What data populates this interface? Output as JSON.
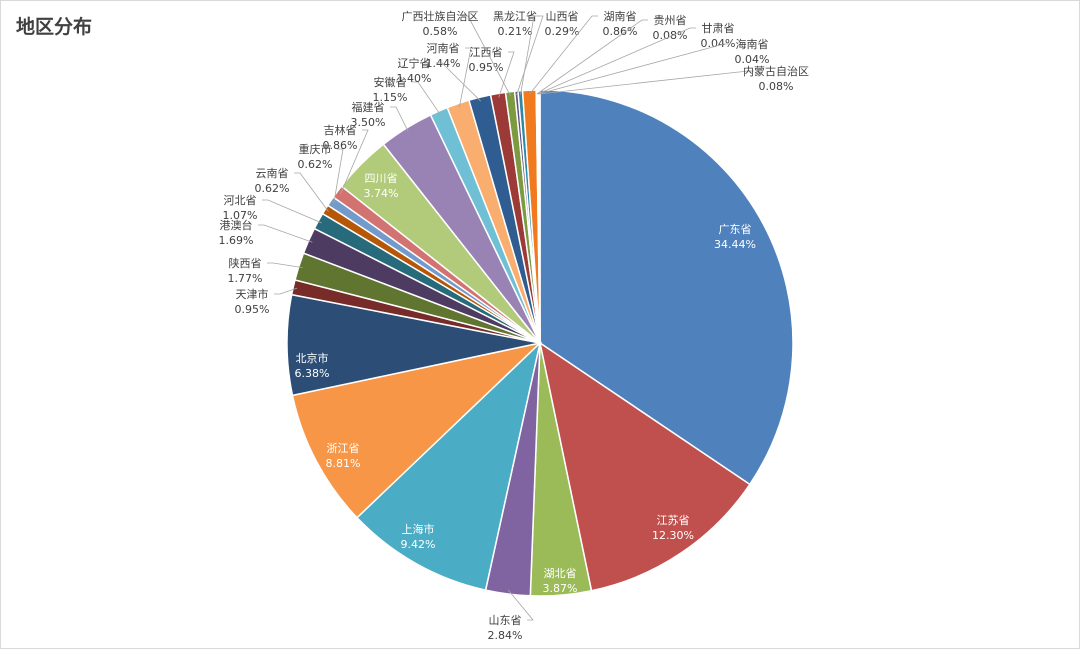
{
  "chart_data": {
    "type": "pie",
    "title": "地区分布",
    "start_angle_deg": 0,
    "direction": "clockwise",
    "slices": [
      {
        "label": "广东省",
        "value": 34.44,
        "display": "34.44%",
        "color": "#4f81bd"
      },
      {
        "label": "江苏省",
        "value": 12.3,
        "display": "12.30%",
        "color": "#c0504d"
      },
      {
        "label": "湖北省",
        "value": 3.87,
        "display": "3.87%",
        "color": "#9bbb59"
      },
      {
        "label": "山东省",
        "value": 2.84,
        "display": "2.84%",
        "color": "#8064a2"
      },
      {
        "label": "上海市",
        "value": 9.42,
        "display": "9.42%",
        "color": "#4bacc6"
      },
      {
        "label": "浙江省",
        "value": 8.81,
        "display": "8.81%",
        "color": "#f79646"
      },
      {
        "label": "北京市",
        "value": 6.38,
        "display": "6.38%",
        "color": "#2c4d75"
      },
      {
        "label": "天津市",
        "value": 0.95,
        "display": "0.95%",
        "color": "#772c2a"
      },
      {
        "label": "陕西省",
        "value": 1.77,
        "display": "1.77%",
        "color": "#5f7530"
      },
      {
        "label": "港澳台",
        "value": 1.69,
        "display": "1.69%",
        "color": "#4d3b62"
      },
      {
        "label": "河北省",
        "value": 1.07,
        "display": "1.07%",
        "color": "#276a7c"
      },
      {
        "label": "云南省",
        "value": 0.62,
        "display": "0.62%",
        "color": "#b65708"
      },
      {
        "label": "重庆市",
        "value": 0.62,
        "display": "0.62%",
        "color": "#729aca"
      },
      {
        "label": "吉林省",
        "value": 0.86,
        "display": "0.86%",
        "color": "#d37371"
      },
      {
        "label": "四川省",
        "value": 3.74,
        "display": "3.74%",
        "color": "#b1cb7b"
      },
      {
        "label": "福建省",
        "value": 3.5,
        "display": "3.50%",
        "color": "#9983b5"
      },
      {
        "label": "安徽省",
        "value": 1.15,
        "display": "1.15%",
        "color": "#6fc0d5"
      },
      {
        "label": "河南省",
        "value": 1.44,
        "display": "1.44%",
        "color": "#f9ad6e"
      },
      {
        "label": "辽宁省",
        "value": 1.4,
        "display": "1.40%",
        "color": "#2f5c91"
      },
      {
        "label": "江西省",
        "value": 0.95,
        "display": "0.95%",
        "color": "#9b3a37"
      },
      {
        "label": "广西壮族自治区",
        "value": 0.58,
        "display": "0.58%",
        "color": "#7c9a40"
      },
      {
        "label": "黑龙江省",
        "value": 0.21,
        "display": "0.21%",
        "color": "#664e85"
      },
      {
        "label": "山西省",
        "value": 0.29,
        "display": "0.29%",
        "color": "#2c8ba3"
      },
      {
        "label": "湖南省",
        "value": 0.86,
        "display": "0.86%",
        "color": "#f27a1e"
      },
      {
        "label": "贵州省",
        "value": 0.08,
        "display": "0.08%",
        "color": "#95b3d7"
      },
      {
        "label": "甘肃省",
        "value": 0.04,
        "display": "0.04%",
        "color": "#da9694"
      },
      {
        "label": "海南省",
        "value": 0.04,
        "display": "0.04%",
        "color": "#c4d79b"
      },
      {
        "label": "内蒙古自治区",
        "value": 0.08,
        "display": "0.08%",
        "color": "#b1a0c7"
      }
    ]
  }
}
